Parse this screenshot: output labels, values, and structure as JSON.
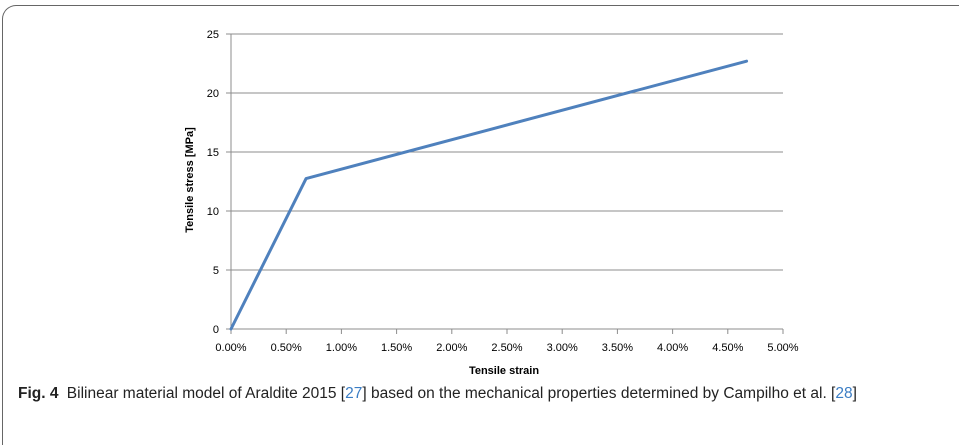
{
  "chart_data": {
    "type": "line",
    "xlabel": "Tensile strain",
    "ylabel": "Tensile stress [MPa]",
    "xlim": [
      0,
      0.05
    ],
    "ylim": [
      0,
      25
    ],
    "xticks": [
      0,
      0.005,
      0.01,
      0.015,
      0.02,
      0.025,
      0.03,
      0.035,
      0.04,
      0.045,
      0.05
    ],
    "xtick_labels": [
      "0.00%",
      "0.50%",
      "1.00%",
      "1.50%",
      "2.00%",
      "2.50%",
      "3.00%",
      "3.50%",
      "4.00%",
      "4.50%",
      "5.00%"
    ],
    "yticks": [
      0,
      5,
      10,
      15,
      20,
      25
    ],
    "ytick_labels": [
      "0",
      "5",
      "10",
      "15",
      "20",
      "25"
    ],
    "grid": "horizontal",
    "series": [
      {
        "x": [
          0,
          0.0068,
          0.0467
        ],
        "y": [
          0,
          12.75,
          22.7
        ],
        "color": "#4f81bd"
      }
    ]
  },
  "caption": {
    "label": "Fig. 4",
    "text_a": "Bilinear material model of Araldite 2015 [",
    "ref1": "27",
    "text_b": "] based on the mechanical properties determined by Campilho et al. [",
    "ref2": "28",
    "text_c": "]"
  }
}
